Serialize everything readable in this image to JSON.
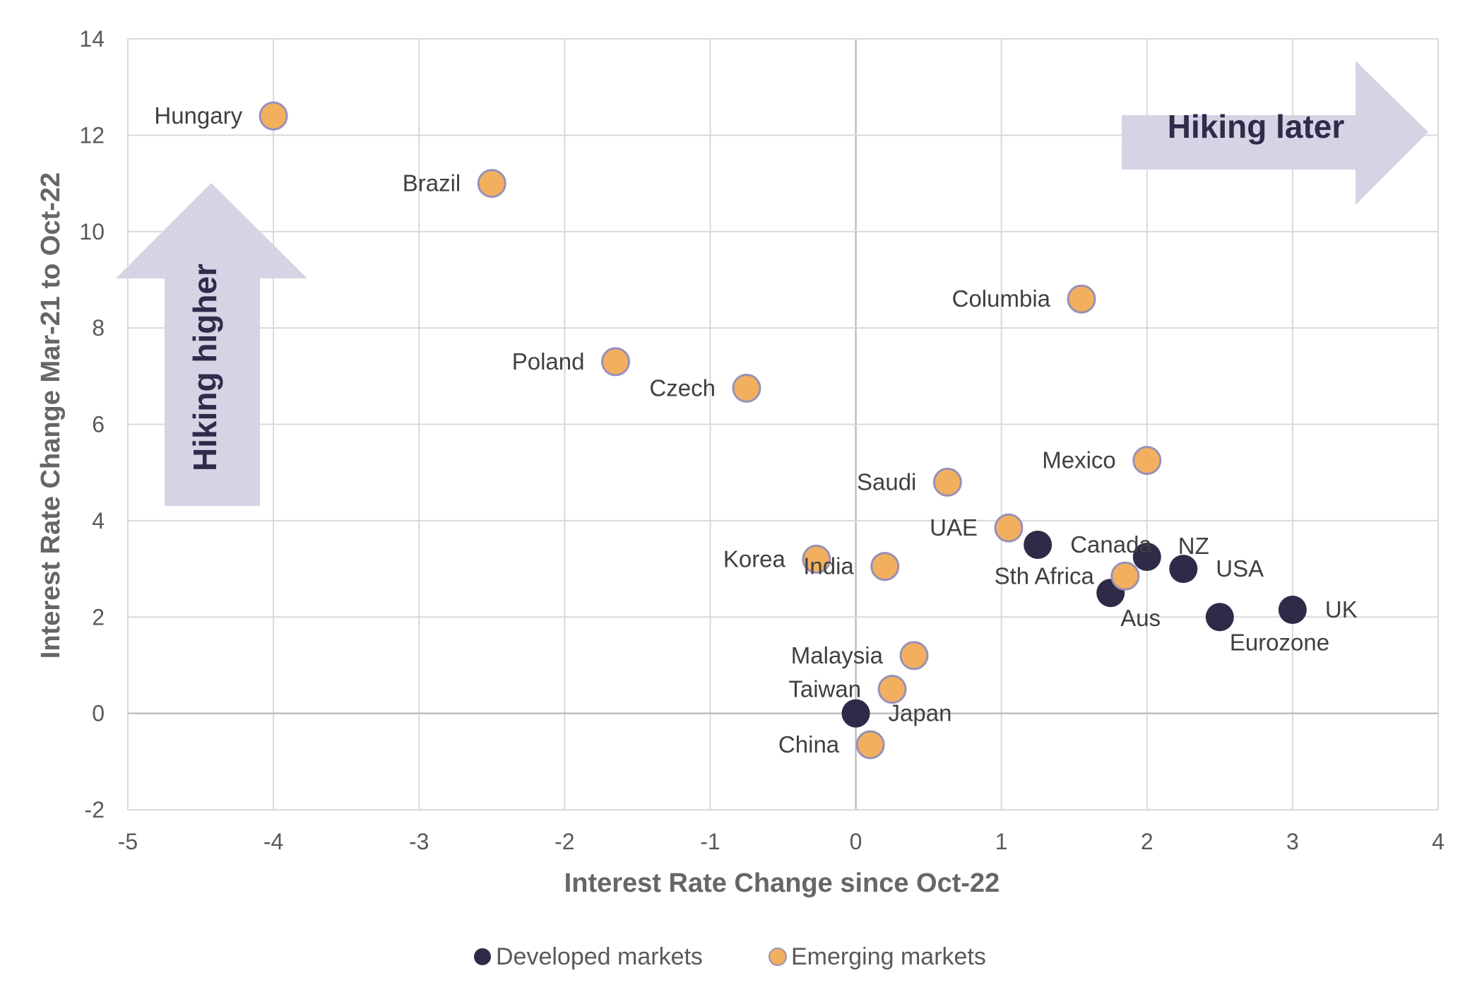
{
  "colors": {
    "developed": "#2e2a48",
    "emerging": "#f2b05e",
    "emerging_stroke": "#9990b8",
    "arrow": "#d6d3e4",
    "annotation_text": "#2f2b4a",
    "grid": "#d9d9d9",
    "zero_line": "#bfbfbf"
  },
  "chart_data": {
    "type": "scatter",
    "title": "",
    "xlabel": "Interest Rate Change since Oct-22",
    "ylabel": "Interest Rate Change Mar-21 to Oct-22",
    "xlim": [
      -5,
      4
    ],
    "ylim": [
      -2,
      14
    ],
    "xticks": [
      -5,
      -4,
      -3,
      -2,
      -1,
      0,
      1,
      2,
      3,
      4
    ],
    "yticks": [
      -2,
      0,
      2,
      4,
      6,
      8,
      10,
      12,
      14
    ],
    "xtick_labels": [
      "-5",
      "-4",
      "-3",
      "-2",
      "-1",
      "0",
      "1",
      "2",
      "3",
      "4"
    ],
    "ytick_labels": [
      "-2",
      "0",
      "2",
      "4",
      "6",
      "8",
      "10",
      "12",
      "14"
    ],
    "grid": true,
    "legend_position": "bottom-center",
    "series": [
      {
        "name": "Developed markets",
        "key": "developed",
        "points": [
          {
            "label": "Canada",
            "x": 1.25,
            "y": 3.5,
            "pos": "right"
          },
          {
            "label": "NZ",
            "x": 2.0,
            "y": 3.25,
            "pos": "upper-right"
          },
          {
            "label": "USA",
            "x": 2.25,
            "y": 3.0,
            "pos": "right"
          },
          {
            "label": "Aus",
            "x": 1.75,
            "y": 2.5,
            "pos": "below-right"
          },
          {
            "label": "UK",
            "x": 3.0,
            "y": 2.15,
            "pos": "right"
          },
          {
            "label": "Eurozone",
            "x": 2.5,
            "y": 2.0,
            "pos": "below-right"
          },
          {
            "label": "Japan",
            "x": 0.0,
            "y": 0.0,
            "pos": "right"
          }
        ]
      },
      {
        "name": "Emerging markets",
        "key": "emerging",
        "points": [
          {
            "label": "Hungary",
            "x": -4.0,
            "y": 12.4,
            "pos": "left"
          },
          {
            "label": "Brazil",
            "x": -2.5,
            "y": 11.0,
            "pos": "left"
          },
          {
            "label": "Columbia",
            "x": 1.55,
            "y": 8.6,
            "pos": "left"
          },
          {
            "label": "Poland",
            "x": -1.65,
            "y": 7.3,
            "pos": "left"
          },
          {
            "label": "Czech",
            "x": -0.75,
            "y": 6.75,
            "pos": "left"
          },
          {
            "label": "Mexico",
            "x": 2.0,
            "y": 5.25,
            "pos": "left"
          },
          {
            "label": "Saudi",
            "x": 0.63,
            "y": 4.8,
            "pos": "left"
          },
          {
            "label": "UAE",
            "x": 1.05,
            "y": 3.85,
            "pos": "left"
          },
          {
            "label": "Korea",
            "x": -0.27,
            "y": 3.2,
            "pos": "left"
          },
          {
            "label": "India",
            "x": 0.2,
            "y": 3.05,
            "pos": "left"
          },
          {
            "label": "Sth Africa",
            "x": 1.85,
            "y": 2.85,
            "pos": "left"
          },
          {
            "label": "Malaysia",
            "x": 0.4,
            "y": 1.2,
            "pos": "left"
          },
          {
            "label": "Taiwan",
            "x": 0.25,
            "y": 0.5,
            "pos": "left"
          },
          {
            "label": "China",
            "x": 0.1,
            "y": -0.65,
            "pos": "left"
          }
        ]
      }
    ],
    "annotations": [
      {
        "text": "Hiking later",
        "direction": "right"
      },
      {
        "text": "Hiking higher",
        "direction": "up"
      }
    ]
  }
}
